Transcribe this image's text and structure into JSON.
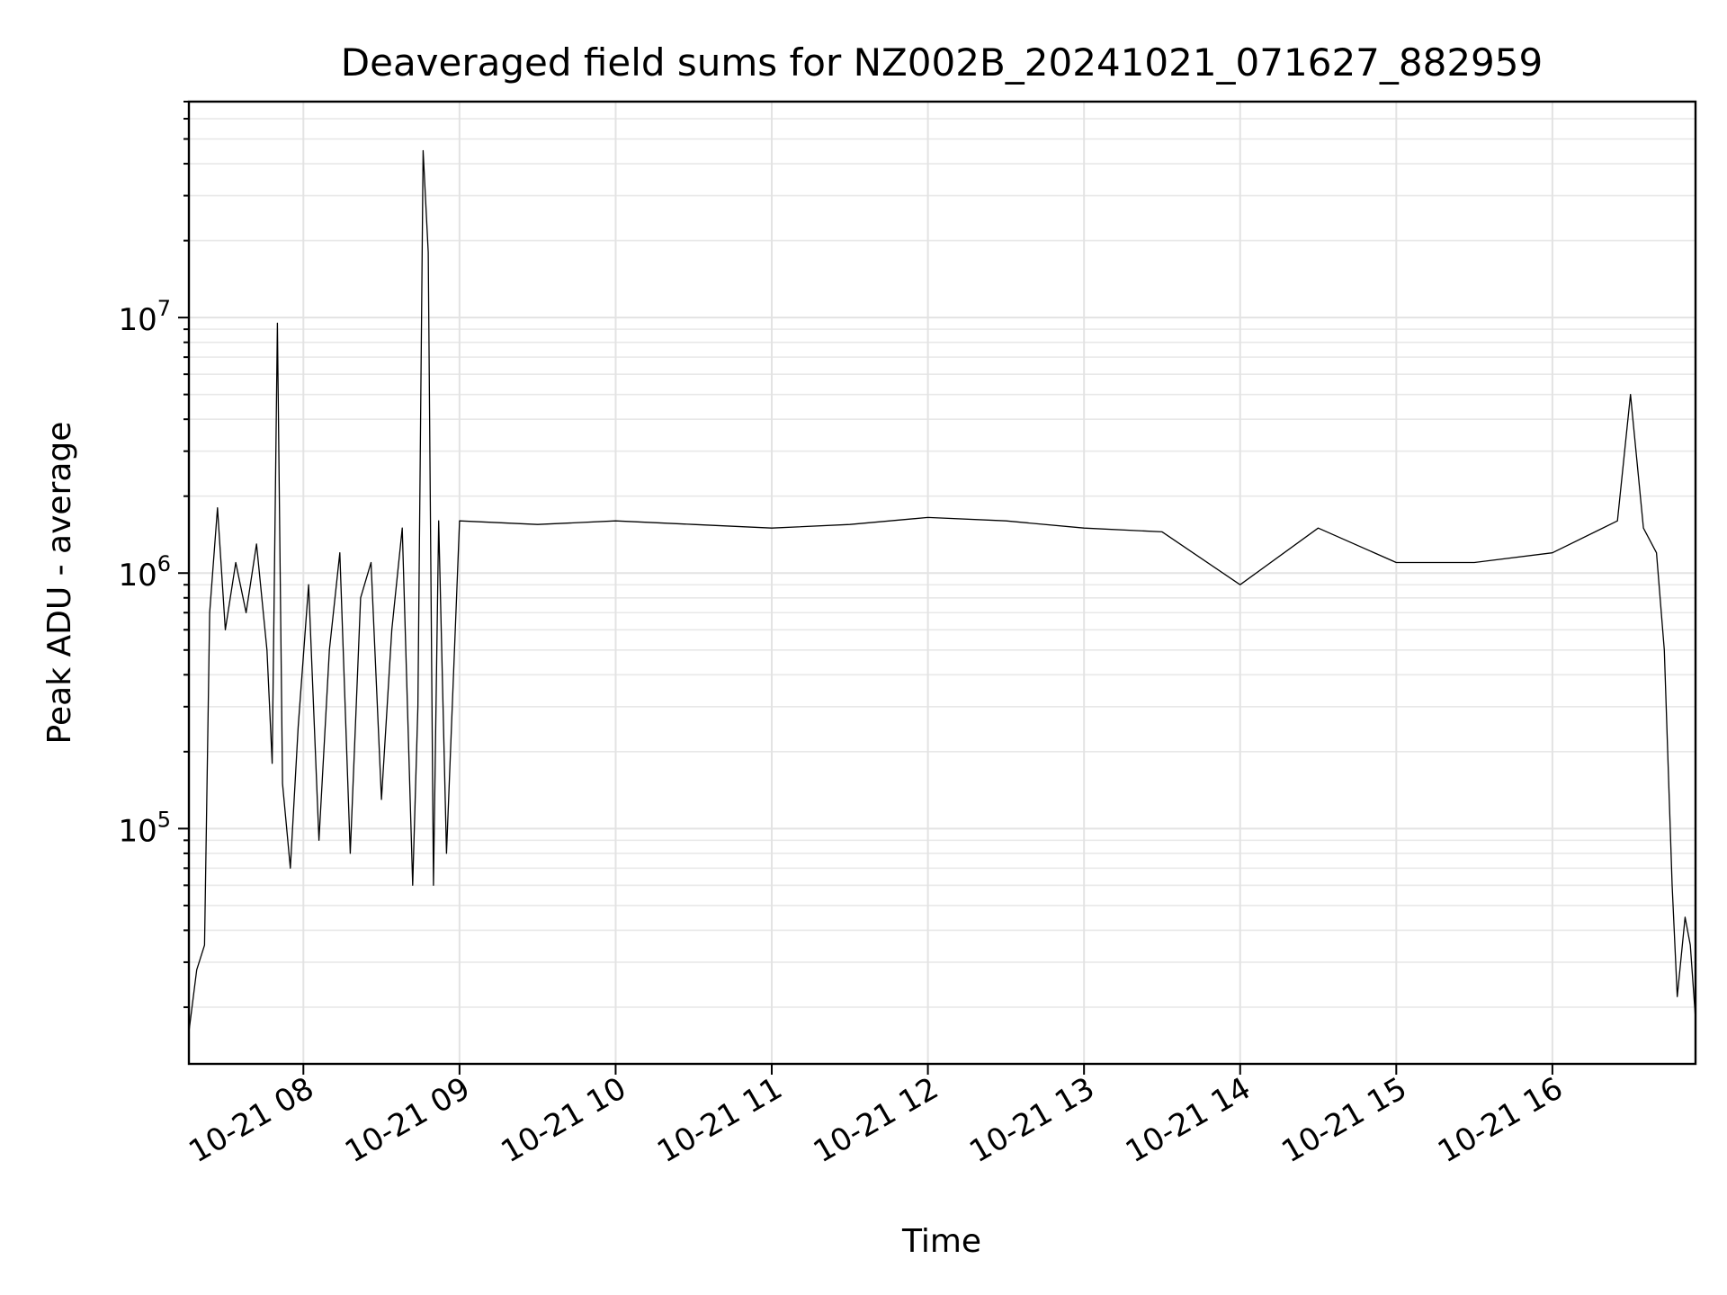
{
  "chart_data": {
    "type": "line",
    "title": "Deaveraged field sums for NZ002B_20241021_071627_882959",
    "xlabel": "Time",
    "ylabel": "Peak ADU - average",
    "y_scale": "log",
    "ylim": [
      12000,
      70000000
    ],
    "xlim": [
      "2024-10-21 07:16",
      "2024-10-21 16:55"
    ],
    "grid": true,
    "x_ticks": [
      {
        "value": "2024-10-21 08:00",
        "label": "10-21 08"
      },
      {
        "value": "2024-10-21 09:00",
        "label": "10-21 09"
      },
      {
        "value": "2024-10-21 10:00",
        "label": "10-21 10"
      },
      {
        "value": "2024-10-21 11:00",
        "label": "10-21 11"
      },
      {
        "value": "2024-10-21 12:00",
        "label": "10-21 12"
      },
      {
        "value": "2024-10-21 13:00",
        "label": "10-21 13"
      },
      {
        "value": "2024-10-21 14:00",
        "label": "10-21 14"
      },
      {
        "value": "2024-10-21 15:00",
        "label": "10-21 15"
      },
      {
        "value": "2024-10-21 16:00",
        "label": "10-21 16"
      }
    ],
    "y_ticks": [
      {
        "value": 100000,
        "base": "10",
        "exp": "5"
      },
      {
        "value": 1000000,
        "base": "10",
        "exp": "6"
      },
      {
        "value": 10000000,
        "base": "10",
        "exp": "7"
      }
    ],
    "series": [
      {
        "color": "#000000",
        "points": [
          [
            "2024-10-21 07:16",
            16000
          ],
          [
            "2024-10-21 07:19",
            28000
          ],
          [
            "2024-10-21 07:22",
            35000
          ],
          [
            "2024-10-21 07:24",
            700000
          ],
          [
            "2024-10-21 07:27",
            1800000
          ],
          [
            "2024-10-21 07:30",
            600000
          ],
          [
            "2024-10-21 07:34",
            1100000
          ],
          [
            "2024-10-21 07:38",
            700000
          ],
          [
            "2024-10-21 07:42",
            1300000
          ],
          [
            "2024-10-21 07:46",
            500000
          ],
          [
            "2024-10-21 07:48",
            180000
          ],
          [
            "2024-10-21 07:50",
            9500000
          ],
          [
            "2024-10-21 07:52",
            150000
          ],
          [
            "2024-10-21 07:55",
            70000
          ],
          [
            "2024-10-21 07:58",
            250000
          ],
          [
            "2024-10-21 08:02",
            900000
          ],
          [
            "2024-10-21 08:06",
            90000
          ],
          [
            "2024-10-21 08:10",
            500000
          ],
          [
            "2024-10-21 08:14",
            1200000
          ],
          [
            "2024-10-21 08:18",
            80000
          ],
          [
            "2024-10-21 08:22",
            800000
          ],
          [
            "2024-10-21 08:26",
            1100000
          ],
          [
            "2024-10-21 08:30",
            130000
          ],
          [
            "2024-10-21 08:34",
            600000
          ],
          [
            "2024-10-21 08:38",
            1500000
          ],
          [
            "2024-10-21 08:42",
            60000
          ],
          [
            "2024-10-21 08:44",
            300000
          ],
          [
            "2024-10-21 08:46",
            45000000
          ],
          [
            "2024-10-21 08:48",
            18000000
          ],
          [
            "2024-10-21 08:50",
            60000
          ],
          [
            "2024-10-21 08:52",
            1600000
          ],
          [
            "2024-10-21 08:55",
            80000
          ],
          [
            "2024-10-21 09:00",
            1600000
          ],
          [
            "2024-10-21 09:30",
            1550000
          ],
          [
            "2024-10-21 10:00",
            1600000
          ],
          [
            "2024-10-21 10:30",
            1550000
          ],
          [
            "2024-10-21 11:00",
            1500000
          ],
          [
            "2024-10-21 11:30",
            1550000
          ],
          [
            "2024-10-21 12:00",
            1650000
          ],
          [
            "2024-10-21 12:30",
            1600000
          ],
          [
            "2024-10-21 13:00",
            1500000
          ],
          [
            "2024-10-21 13:30",
            1450000
          ],
          [
            "2024-10-21 14:00",
            900000
          ],
          [
            "2024-10-21 14:30",
            1500000
          ],
          [
            "2024-10-21 15:00",
            1100000
          ],
          [
            "2024-10-21 15:30",
            1100000
          ],
          [
            "2024-10-21 16:00",
            1200000
          ],
          [
            "2024-10-21 16:25",
            1600000
          ],
          [
            "2024-10-21 16:30",
            5000000
          ],
          [
            "2024-10-21 16:35",
            1500000
          ],
          [
            "2024-10-21 16:40",
            1200000
          ],
          [
            "2024-10-21 16:43",
            500000
          ],
          [
            "2024-10-21 16:46",
            60000
          ],
          [
            "2024-10-21 16:48",
            22000
          ],
          [
            "2024-10-21 16:51",
            45000
          ],
          [
            "2024-10-21 16:53",
            35000
          ],
          [
            "2024-10-21 16:55",
            18000
          ]
        ]
      }
    ]
  }
}
